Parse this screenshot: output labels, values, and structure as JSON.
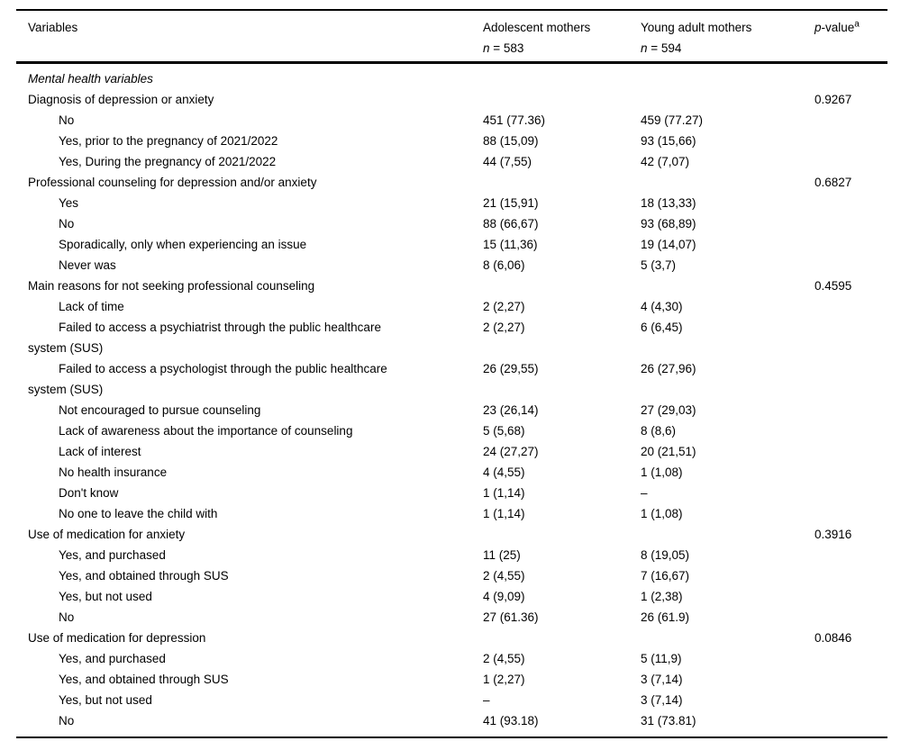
{
  "header": {
    "variables": "Variables",
    "group1_name": "Adolescent mothers",
    "group1_n": "n",
    "group1_n_rest": " = 583",
    "group2_name": "Young adult mothers",
    "group2_n": "n",
    "group2_n_rest": " = 594",
    "pvalue_italic": "p",
    "pvalue_rest": "-value",
    "pvalue_sup": "a"
  },
  "rows": [
    {
      "type": "section",
      "label": "Mental health variables",
      "g1": "",
      "g2": "",
      "p": ""
    },
    {
      "type": "category",
      "label": "Diagnosis of depression or anxiety",
      "g1": "",
      "g2": "",
      "p": "0.9267"
    },
    {
      "type": "item",
      "label": "No",
      "g1": "451 (77.36)",
      "g2": "459 (77.27)",
      "p": ""
    },
    {
      "type": "item",
      "label": "Yes, prior to the pregnancy of 2021/2022",
      "g1": "88 (15,09)",
      "g2": "93 (15,66)",
      "p": ""
    },
    {
      "type": "item",
      "label": "Yes, During the pregnancy of 2021/2022",
      "g1": "44 (7,55)",
      "g2": "42 (7,07)",
      "p": ""
    },
    {
      "type": "category",
      "label": "Professional counseling for depression and/or anxiety",
      "g1": "",
      "g2": "",
      "p": "0.6827"
    },
    {
      "type": "item",
      "label": "Yes",
      "g1": "21 (15,91)",
      "g2": "18 (13,33)",
      "p": ""
    },
    {
      "type": "item",
      "label": "No",
      "g1": "88 (66,67)",
      "g2": "93 (68,89)",
      "p": ""
    },
    {
      "type": "item",
      "label": "Sporadically, only when experiencing an issue",
      "g1": "15 (11,36)",
      "g2": "19 (14,07)",
      "p": ""
    },
    {
      "type": "item",
      "label": "Never was",
      "g1": "8 (6,06)",
      "g2": "5 (3,7)",
      "p": ""
    },
    {
      "type": "category",
      "label": "Main reasons for not seeking professional counseling",
      "g1": "",
      "g2": "",
      "p": "0.4595"
    },
    {
      "type": "item",
      "label": "Lack of time",
      "g1": "2 (2,27)",
      "g2": "4 (4,30)",
      "p": ""
    },
    {
      "type": "item",
      "label": "Failed to access a psychiatrist through the public healthcare\nsystem (SUS)",
      "g1": "2 (2,27)",
      "g2": "6 (6,45)",
      "p": ""
    },
    {
      "type": "item",
      "label": "Failed to access a psychologist through the public healthcare\nsystem (SUS)",
      "g1": "26 (29,55)",
      "g2": "26 (27,96)",
      "p": ""
    },
    {
      "type": "item",
      "label": "Not encouraged to pursue counseling",
      "g1": "23 (26,14)",
      "g2": "27 (29,03)",
      "p": ""
    },
    {
      "type": "item",
      "label": "Lack of awareness about the importance of counseling",
      "g1": "5 (5,68)",
      "g2": "8 (8,6)",
      "p": ""
    },
    {
      "type": "item",
      "label": "Lack of interest",
      "g1": "24 (27,27)",
      "g2": "20 (21,51)",
      "p": ""
    },
    {
      "type": "item",
      "label": "No health insurance",
      "g1": "4 (4,55)",
      "g2": "1 (1,08)",
      "p": ""
    },
    {
      "type": "item",
      "label": "Don't know",
      "g1": "1 (1,14)",
      "g2": "–",
      "p": ""
    },
    {
      "type": "item",
      "label": "No one to leave the child with",
      "g1": "1 (1,14)",
      "g2": "1 (1,08)",
      "p": ""
    },
    {
      "type": "category",
      "label": "Use of medication for anxiety",
      "g1": "",
      "g2": "",
      "p": "0.3916"
    },
    {
      "type": "item",
      "label": "Yes, and purchased",
      "g1": "11 (25)",
      "g2": "8 (19,05)",
      "p": ""
    },
    {
      "type": "item",
      "label": "Yes, and obtained through SUS",
      "g1": "2 (4,55)",
      "g2": "7 (16,67)",
      "p": ""
    },
    {
      "type": "item",
      "label": "Yes, but not used",
      "g1": "4 (9,09)",
      "g2": "1 (2,38)",
      "p": ""
    },
    {
      "type": "item",
      "label": "No",
      "g1": "27 (61.36)",
      "g2": "26 (61.9)",
      "p": ""
    },
    {
      "type": "category",
      "label": "Use of medication for depression",
      "g1": "",
      "g2": "",
      "p": "0.0846"
    },
    {
      "type": "item",
      "label": "Yes, and purchased",
      "g1": "2 (4,55)",
      "g2": "5 (11,9)",
      "p": ""
    },
    {
      "type": "item",
      "label": "Yes, and obtained through SUS",
      "g1": "1 (2,27)",
      "g2": "3 (7,14)",
      "p": ""
    },
    {
      "type": "item",
      "label": "Yes, but not used",
      "g1": "–",
      "g2": "3 (7,14)",
      "p": ""
    },
    {
      "type": "item",
      "label": "No",
      "g1": "41 (93.18)",
      "g2": "31 (73.81)",
      "p": ""
    }
  ]
}
